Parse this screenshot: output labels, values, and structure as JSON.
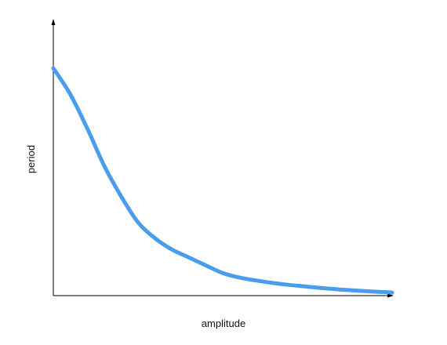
{
  "chart_data": {
    "type": "line",
    "title": "",
    "xlabel": "amplitude",
    "ylabel": "period",
    "xlim": [
      0,
      10
    ],
    "ylim": [
      0,
      10
    ],
    "grid": false,
    "legend": "none",
    "show_ticks": false,
    "series": [
      {
        "color": "#4a9cec",
        "x": [
          0,
          0.5,
          1.0,
          1.5,
          2.0,
          2.5,
          3.0,
          3.5,
          4.0,
          4.5,
          5.0,
          5.5,
          6.0,
          6.5,
          7.0,
          7.5,
          8.0,
          8.5,
          9.0,
          9.5,
          10.0
        ],
        "y": [
          10.0,
          8.85,
          7.35,
          5.7,
          4.35,
          3.2,
          2.5,
          2.0,
          1.65,
          1.3,
          0.96,
          0.76,
          0.63,
          0.52,
          0.43,
          0.36,
          0.29,
          0.23,
          0.18,
          0.14,
          0.1
        ]
      }
    ]
  }
}
